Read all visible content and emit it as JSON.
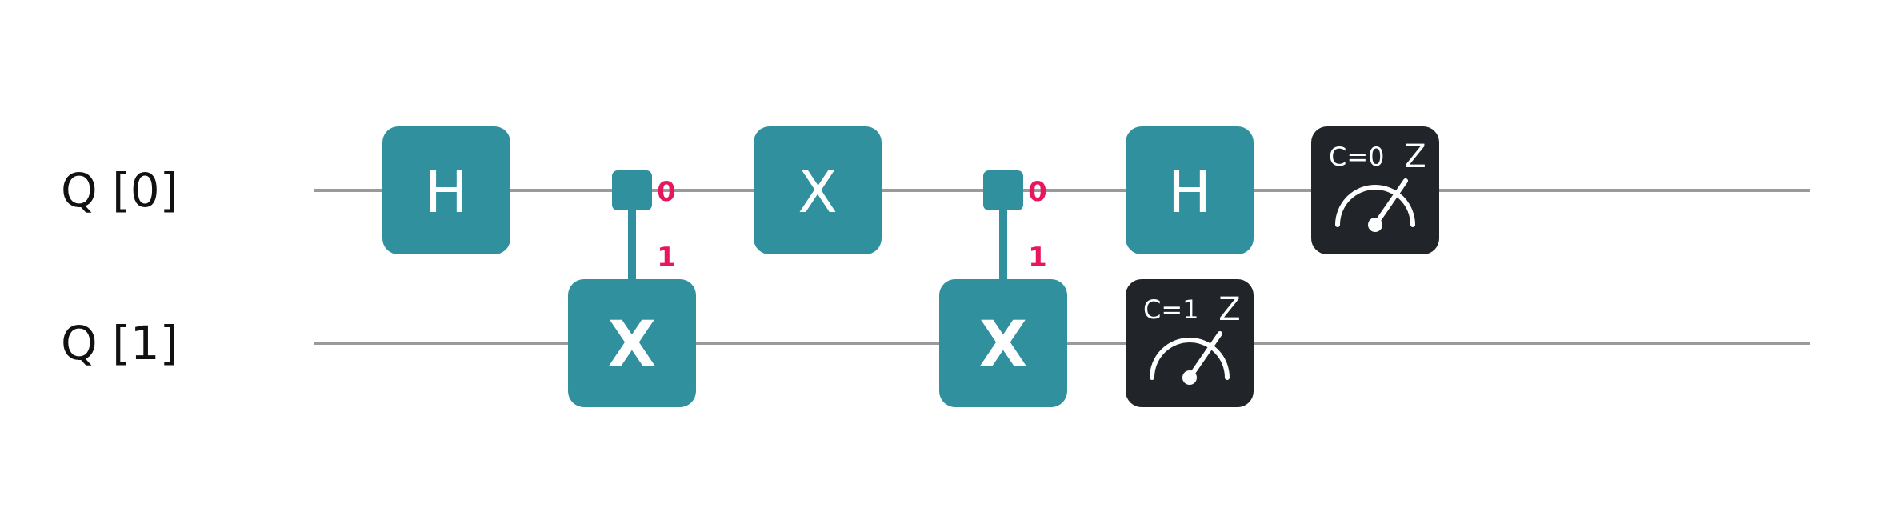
{
  "qubits": [
    {
      "label": "Q [0]"
    },
    {
      "label": "Q [1]"
    }
  ],
  "gates": [
    {
      "type": "single",
      "name": "H",
      "qubit": 0,
      "column": 0
    },
    {
      "type": "controlled",
      "name": "X",
      "control": 0,
      "target": 1,
      "column": 1,
      "control_state": "0",
      "target_state": "1"
    },
    {
      "type": "single",
      "name": "X",
      "qubit": 0,
      "column": 2
    },
    {
      "type": "controlled",
      "name": "X",
      "control": 0,
      "target": 1,
      "column": 3,
      "control_state": "0",
      "target_state": "1"
    },
    {
      "type": "single",
      "name": "H",
      "qubit": 0,
      "column": 4
    },
    {
      "type": "measure",
      "qubit": 1,
      "column": 4,
      "classical": "C=1",
      "basis": "Z"
    },
    {
      "type": "measure",
      "qubit": 0,
      "column": 5,
      "classical": "C=0",
      "basis": "Z"
    }
  ],
  "colors": {
    "gate": "#30909e",
    "measure": "#212529",
    "state_label": "#e8175d",
    "wire": "#9a9a9a"
  }
}
